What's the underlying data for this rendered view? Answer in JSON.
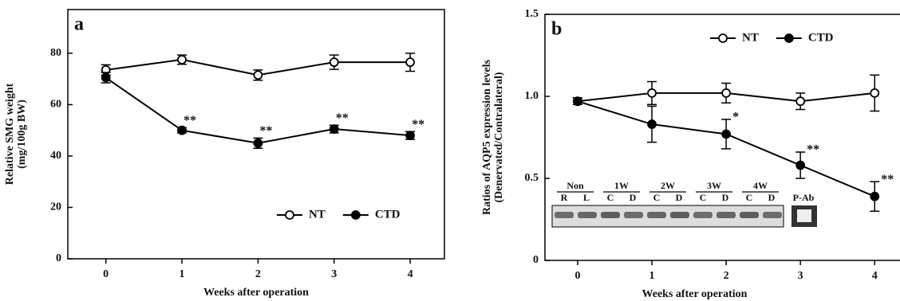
{
  "chart_data": [
    {
      "type": "line",
      "panel_label": "a",
      "ylabel": [
        "Relative SMG weight",
        "(mg/100g BW)"
      ],
      "xlabel": "Weeks after operation",
      "x": [
        0,
        1,
        2,
        3,
        4
      ],
      "xlim": [
        -0.5,
        4.45
      ],
      "xticks": [
        0,
        1,
        2,
        3,
        4
      ],
      "ylim": [
        0,
        97
      ],
      "yticks": [
        0,
        20,
        40,
        60,
        80
      ],
      "legend": "lower right",
      "series": [
        {
          "name": "NT",
          "color": "#000000",
          "filled": false,
          "values": [
            73.5,
            77.5,
            71.5,
            76.5,
            76.5
          ],
          "errors": [
            2,
            1.8,
            2,
            2.8,
            3.5
          ]
        },
        {
          "name": "CTD",
          "color": "#000000",
          "filled": true,
          "values": [
            70.5,
            50,
            45,
            50.5,
            48
          ],
          "errors": [
            2,
            1,
            2,
            1.5,
            1.5
          ]
        }
      ],
      "annotations": [
        {
          "x": 1,
          "text": "**"
        },
        {
          "x": 2,
          "text": "**"
        },
        {
          "x": 3,
          "text": "**"
        },
        {
          "x": 4,
          "text": "**"
        }
      ]
    },
    {
      "type": "line",
      "panel_label": "b",
      "ylabel": [
        "Ratios of AQP5 expression levels",
        "(Denervated/Contralateral)"
      ],
      "xlabel": "Weeks after operation",
      "x": [
        0,
        1,
        2,
        3,
        4
      ],
      "xlim": [
        -0.44,
        4.47
      ],
      "xticks": [
        0,
        1,
        2,
        3,
        4
      ],
      "ylim": [
        0,
        1.5
      ],
      "yticks": [
        0,
        0.5,
        {
          "value": 1,
          "label": "1.0"
        },
        1.5
      ],
      "legend": "upper right",
      "series": [
        {
          "name": "NT",
          "color": "#000000",
          "filled": false,
          "values": [
            0.97,
            1.02,
            1.02,
            0.97,
            1.02
          ],
          "errors": [
            0.02,
            0.07,
            0.06,
            0.05,
            0.11
          ]
        },
        {
          "name": "CTD",
          "color": "#000000",
          "filled": true,
          "values": [
            0.97,
            0.83,
            0.77,
            0.58,
            0.39
          ],
          "errors": [
            0.02,
            0.11,
            0.09,
            0.08,
            0.09
          ]
        }
      ],
      "annotations": [
        {
          "x": 2,
          "text": "*"
        },
        {
          "x": 3,
          "text": "**"
        },
        {
          "x": 4,
          "text": "**"
        }
      ],
      "inset": {
        "groups": [
          "Non",
          "1W",
          "2W",
          "3W",
          "4W"
        ],
        "lanes": [
          [
            "R",
            "L"
          ],
          [
            "C",
            "D"
          ],
          [
            "C",
            "D"
          ],
          [
            "C",
            "D"
          ],
          [
            "C",
            "D"
          ]
        ],
        "extra": "P-Ab"
      }
    }
  ]
}
